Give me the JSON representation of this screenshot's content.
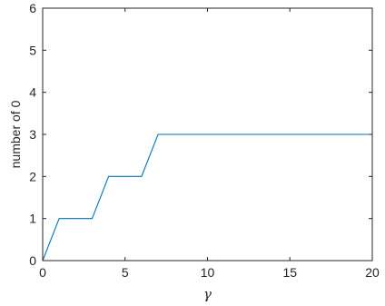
{
  "chart_data": {
    "type": "line",
    "xlabel": "γ",
    "ylabel": "number of 0",
    "xlim": [
      0,
      20
    ],
    "ylim": [
      0,
      6
    ],
    "xticks": [
      0,
      5,
      10,
      15,
      20
    ],
    "yticks": [
      0,
      1,
      2,
      3,
      4,
      5,
      6
    ],
    "grid": false,
    "box": true,
    "series": [
      {
        "color": "#0072BD",
        "x": [
          0,
          1,
          3,
          4,
          6,
          7,
          20
        ],
        "y": [
          0,
          1,
          1,
          2,
          2,
          3,
          3
        ]
      }
    ]
  }
}
